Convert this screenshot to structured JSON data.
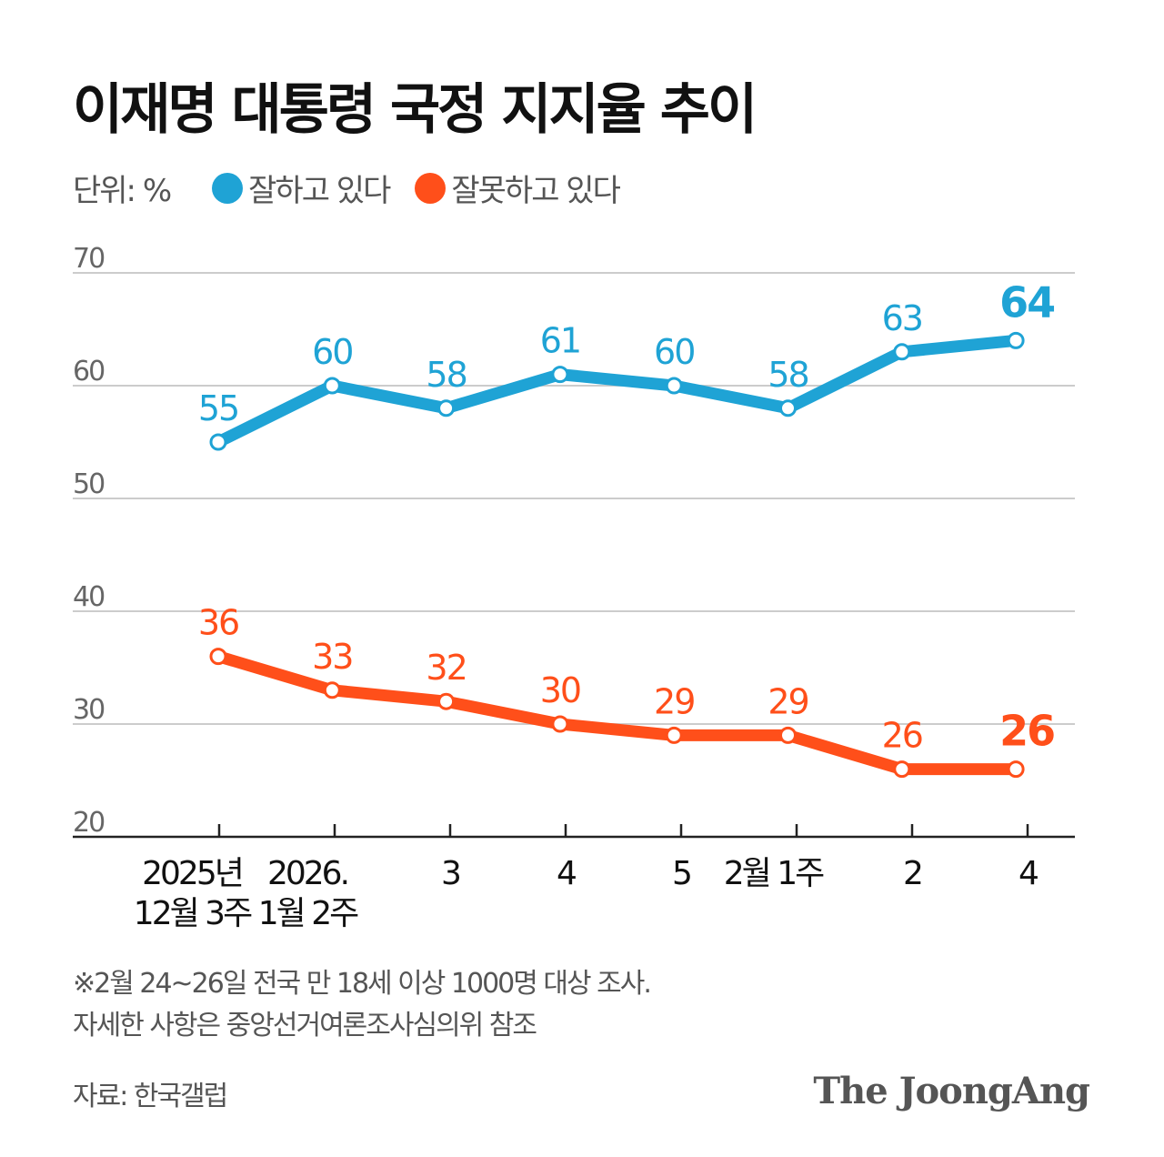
{
  "title": "이재명 대통령 국정 지지율 추이",
  "unit_label": "단위: %",
  "colors": {
    "approve": "#1fa3d5",
    "disapprove": "#ff4f1a",
    "grid": "#cccccc",
    "axis": "#222222",
    "text": "#555555"
  },
  "chart_data": {
    "type": "line",
    "title": "이재명 대통령 국정 지지율 추이",
    "ylabel": "단위: %",
    "ylim": [
      20,
      70
    ],
    "yticks": [
      "70",
      "60",
      "50",
      "40",
      "30",
      "20"
    ],
    "grid": true,
    "legend_placement": "top-left",
    "categories": [
      [
        "2025년",
        "12월 3주"
      ],
      [
        "2026.",
        "1월 2주"
      ],
      [
        "3"
      ],
      [
        "4"
      ],
      [
        "5"
      ],
      [
        "2월 1주"
      ],
      [
        "2"
      ],
      [
        "4"
      ]
    ],
    "series": [
      {
        "name": "잘하고 있다",
        "values": [
          55,
          60,
          58,
          61,
          60,
          58,
          63,
          64
        ]
      },
      {
        "name": "잘못하고 있다",
        "values": [
          36,
          33,
          32,
          30,
          29,
          29,
          26,
          26
        ]
      }
    ]
  },
  "footnote": [
    "※2월 24~26일 전국 만 18세 이상 1000명 대상 조사.",
    "자세한 사항은 중앙선거여론조사심의위 참조"
  ],
  "source": "자료: 한국갤럽",
  "logo": "The JoongAng"
}
